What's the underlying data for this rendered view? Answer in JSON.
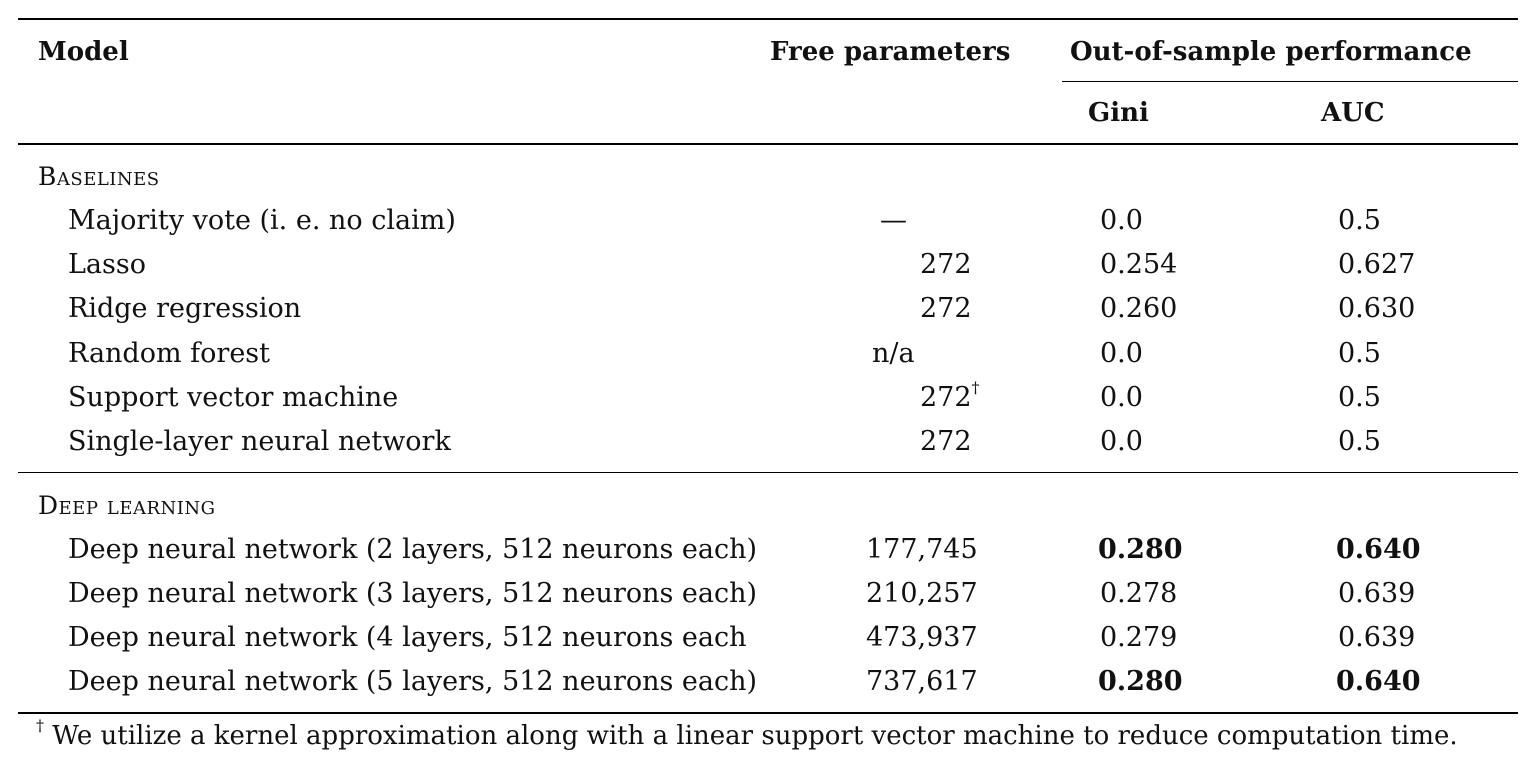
{
  "table": {
    "headers": {
      "model": "Model",
      "free_parameters": "Free parameters",
      "performance_group": "Out-of-sample performance",
      "gini": "Gini",
      "auc": "AUC"
    },
    "sections": [
      {
        "title": "Baselines",
        "rows": [
          {
            "model": "Majority vote (i. e. no claim)",
            "params": "—",
            "gini": "0.0",
            "auc": "0.5"
          },
          {
            "model": "Lasso",
            "params": "272",
            "gini": "0.254",
            "auc": "0.627"
          },
          {
            "model": "Ridge regression",
            "params": "272",
            "gini": "0.260",
            "auc": "0.630"
          },
          {
            "model": "Random forest",
            "params": "n/a",
            "gini": "0.0",
            "auc": "0.5"
          },
          {
            "model": "Support vector machine",
            "params": "272",
            "params_mark": "†",
            "gini": "0.0",
            "auc": "0.5"
          },
          {
            "model": "Single-layer neural network",
            "params": "272",
            "gini": "0.0",
            "auc": "0.5"
          }
        ]
      },
      {
        "title": "Deep learning",
        "rows": [
          {
            "model": "Deep neural network (2 layers, 512 neurons each)",
            "params": "177,745",
            "gini": "0.280",
            "auc": "0.640"
          },
          {
            "model": "Deep neural network (3 layers, 512 neurons each)",
            "params": "210,257",
            "gini": "0.278",
            "auc": "0.639"
          },
          {
            "model": "Deep neural network (4 layers, 512 neurons each",
            "params": "473,937",
            "gini": "0.279",
            "auc": "0.639"
          },
          {
            "model": "Deep neural network (5 layers, 512 neurons each)",
            "params": "737,617",
            "gini": "0.280",
            "auc": "0.640"
          }
        ]
      }
    ],
    "footnote": {
      "mark": "†",
      "text": " We utilize a kernel approximation along with a linear support vector machine to reduce computation time."
    }
  }
}
